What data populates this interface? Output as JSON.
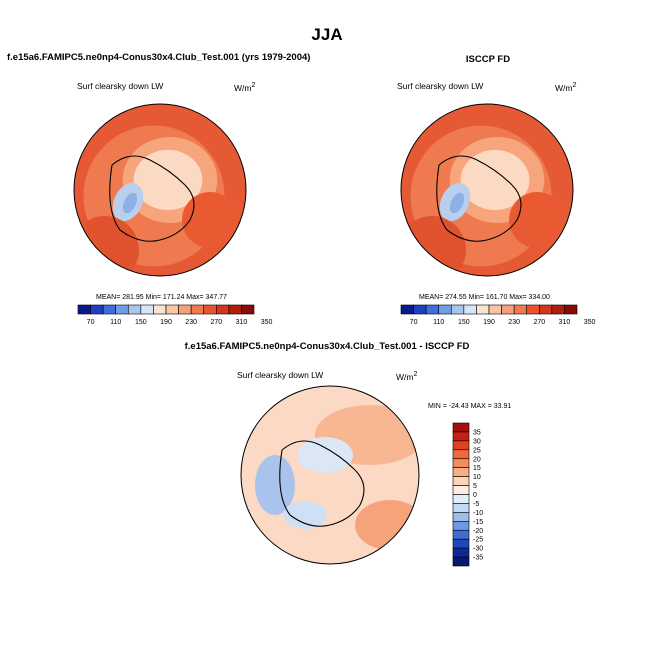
{
  "page": {
    "season_title": "JJA",
    "model_label": "f.e15a6.FAMIPC5.ne0np4-Conus30x4.Club_Test.001 (yrs 1979-2004)",
    "obs_label": "ISCCP FD",
    "diff_label": "f.e15a6.FAMIPC5.ne0np4-Conus30x4.Club_Test.001 - ISCCP FD"
  },
  "panels": {
    "model": {
      "variable": "Surf clearsky down LW",
      "units": "W/m",
      "units_exp": "2",
      "stats": "MEAN= 281.95  Min= 171.24  Max= 347.77"
    },
    "obs": {
      "variable": "Surf clearsky down LW",
      "units": "W/m",
      "units_exp": "2",
      "stats": "MEAN= 274.55  Min= 161.70  Max= 334.00"
    },
    "diff": {
      "variable": "Surf clearsky down LW",
      "units": "W/m",
      "units_exp": "2",
      "stats": "MIN = -24.43  MAX =  33.91"
    }
  },
  "chart_data": [
    {
      "type": "heatmap",
      "projection": "north polar stereographic",
      "title": "f.e15a6.FAMIPC5.ne0np4-Conus30x4.Club_Test.001 (yrs 1979-2004)",
      "field": "Surf clearsky down LW",
      "units": "W/m2",
      "mean": 281.95,
      "min": 171.24,
      "max": 347.77,
      "colorbar_ticks": [
        "70",
        "110",
        "150",
        "190",
        "230",
        "270",
        "310",
        "350"
      ],
      "colorbar_colors": [
        "#0a1a8c",
        "#1f3fc4",
        "#3c6ee0",
        "#6f9ee8",
        "#a9c6ef",
        "#d6e5f7",
        "#fbe3d3",
        "#fbc4a4",
        "#f7a07a",
        "#f27a51",
        "#ea5530",
        "#d6361c",
        "#b31d0e",
        "#8a0a05"
      ]
    },
    {
      "type": "heatmap",
      "projection": "north polar stereographic",
      "title": "ISCCP FD",
      "field": "Surf clearsky down LW",
      "units": "W/m2",
      "mean": 274.55,
      "min": 161.7,
      "max": 334.0,
      "colorbar_ticks": [
        "70",
        "110",
        "150",
        "190",
        "230",
        "270",
        "310",
        "350"
      ],
      "colorbar_colors": [
        "#0a1a8c",
        "#1f3fc4",
        "#3c6ee0",
        "#6f9ee8",
        "#a9c6ef",
        "#d6e5f7",
        "#fbe3d3",
        "#fbc4a4",
        "#f7a07a",
        "#f27a51",
        "#ea5530",
        "#d6361c",
        "#b31d0e",
        "#8a0a05"
      ]
    },
    {
      "type": "heatmap",
      "projection": "north polar stereographic",
      "title": "f.e15a6.FAMIPC5.ne0np4-Conus30x4.Club_Test.001 - ISCCP FD",
      "field": "Surf clearsky down LW",
      "units": "W/m2",
      "min": -24.43,
      "max": 33.91,
      "colorbar_ticks": [
        "35",
        "30",
        "25",
        "20",
        "15",
        "10",
        "5",
        "0",
        "-5",
        "-10",
        "-15",
        "-20",
        "-25",
        "-30",
        "-35"
      ],
      "colorbar_colors": [
        "#a50f0d",
        "#c81e14",
        "#e0421f",
        "#ef6a3a",
        "#f58c5c",
        "#f9ae85",
        "#fcd2b8",
        "#fdece2",
        "#e3ecf9",
        "#c3d8f2",
        "#9dbdea",
        "#6e98df",
        "#3e6ed3",
        "#1f47bd",
        "#0c2a96",
        "#061870"
      ]
    }
  ]
}
